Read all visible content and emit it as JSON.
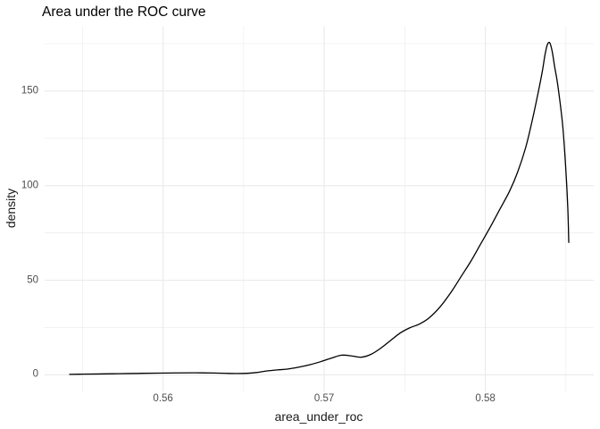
{
  "title": "Area under the ROC curve",
  "chart_data": {
    "type": "line",
    "subtype": "density-curve",
    "title": "Area under the ROC curve",
    "xlabel": "area_under_roc",
    "ylabel": "density",
    "x_ticks": [
      {
        "v": 0.56,
        "label": "0.56"
      },
      {
        "v": 0.57,
        "label": "0.57"
      },
      {
        "v": 0.58,
        "label": "0.58"
      }
    ],
    "y_ticks": [
      {
        "v": 0,
        "label": "0"
      },
      {
        "v": 50,
        "label": "50"
      },
      {
        "v": 100,
        "label": "100"
      },
      {
        "v": 150,
        "label": "150"
      }
    ],
    "x_minor_ticks": [
      0.555,
      0.565,
      0.575,
      0.585
    ],
    "y_minor_ticks": [
      25,
      75,
      125,
      175
    ],
    "xlim": [
      0.55265,
      0.58673
    ],
    "ylim": [
      -8.8,
      184.2
    ],
    "grid": "major-and-minor",
    "legend": "none",
    "colors": {
      "background": "#ffffff",
      "grid": "#ebebeb",
      "curve": "#000000",
      "tick_label": "#4d4d4d",
      "axis_title": "#1a1a1a"
    },
    "series": [
      {
        "name": "density",
        "color": "#000000",
        "points": [
          [
            0.5542,
            0.25
          ],
          [
            0.555,
            0.35
          ],
          [
            0.556,
            0.45
          ],
          [
            0.5572,
            0.6
          ],
          [
            0.5584,
            0.75
          ],
          [
            0.5596,
            0.9
          ],
          [
            0.5608,
            1.0
          ],
          [
            0.562,
            1.05
          ],
          [
            0.5632,
            0.95
          ],
          [
            0.5645,
            0.7
          ],
          [
            0.5652,
            0.8
          ],
          [
            0.5658,
            1.2
          ],
          [
            0.5664,
            2.0
          ],
          [
            0.5671,
            2.6
          ],
          [
            0.5677,
            3.0
          ],
          [
            0.5684,
            4.0
          ],
          [
            0.5691,
            5.3
          ],
          [
            0.5698,
            7.0
          ],
          [
            0.5705,
            9.0
          ],
          [
            0.5711,
            10.4
          ],
          [
            0.5717,
            10.0
          ],
          [
            0.5723,
            9.3
          ],
          [
            0.5729,
            10.8
          ],
          [
            0.5735,
            14.0
          ],
          [
            0.5741,
            18.0
          ],
          [
            0.5747,
            22.0
          ],
          [
            0.5753,
            24.8
          ],
          [
            0.5759,
            26.8
          ],
          [
            0.5765,
            30.0
          ],
          [
            0.5772,
            36.0
          ],
          [
            0.5779,
            44.0
          ],
          [
            0.5785,
            52.0
          ],
          [
            0.5791,
            60.0
          ],
          [
            0.5797,
            69.0
          ],
          [
            0.5803,
            78.0
          ],
          [
            0.5809,
            87.5
          ],
          [
            0.5815,
            97.0
          ],
          [
            0.582,
            107.0
          ],
          [
            0.5825,
            120.0
          ],
          [
            0.5829,
            134.0
          ],
          [
            0.5833,
            150.0
          ],
          [
            0.58355,
            161.0
          ],
          [
            0.5837,
            169.0
          ],
          [
            0.58385,
            174.5
          ],
          [
            0.584,
            175.5
          ],
          [
            0.58415,
            171.0
          ],
          [
            0.5843,
            163.0
          ],
          [
            0.5845,
            153.0
          ],
          [
            0.5848,
            132.0
          ],
          [
            0.585,
            108.0
          ],
          [
            0.58512,
            88.0
          ],
          [
            0.58518,
            70.0
          ]
        ]
      }
    ]
  }
}
